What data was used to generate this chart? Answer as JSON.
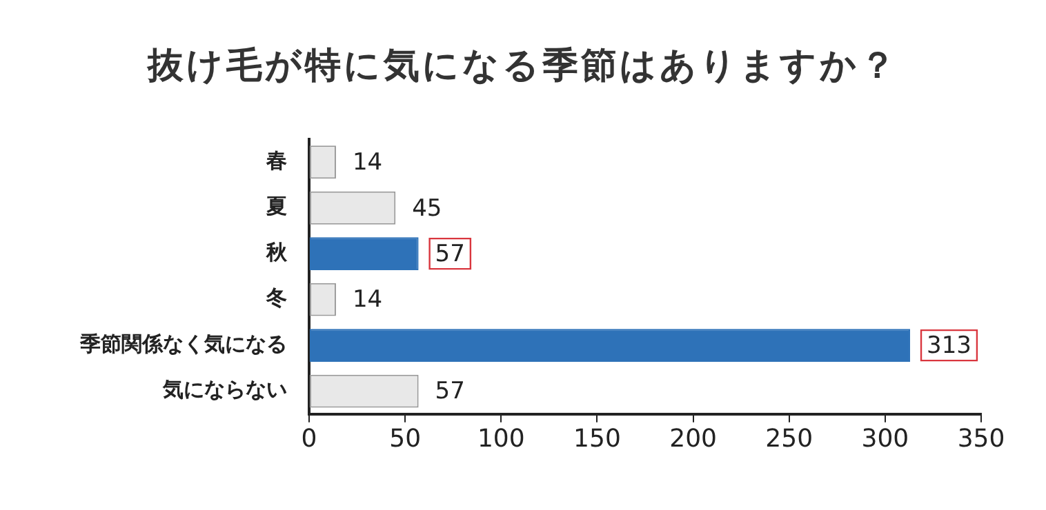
{
  "chart_data": {
    "type": "bar",
    "orientation": "horizontal",
    "title": "抜け毛が特に気になる季節はありますか？",
    "categories": [
      "春",
      "夏",
      "秋",
      "冬",
      "季節関係なく気になる",
      "気にならない"
    ],
    "values": [
      14,
      45,
      57,
      14,
      313,
      57
    ],
    "colors": [
      "#e8e8e8",
      "#e8e8e8",
      "#2e72b8",
      "#e8e8e8",
      "#2e72b8",
      "#e8e8e8"
    ],
    "xlim": [
      0,
      350
    ],
    "xticks": [
      0,
      50,
      100,
      150,
      200,
      250,
      300,
      350
    ],
    "grid": false,
    "data_labels": true,
    "legend": false
  }
}
